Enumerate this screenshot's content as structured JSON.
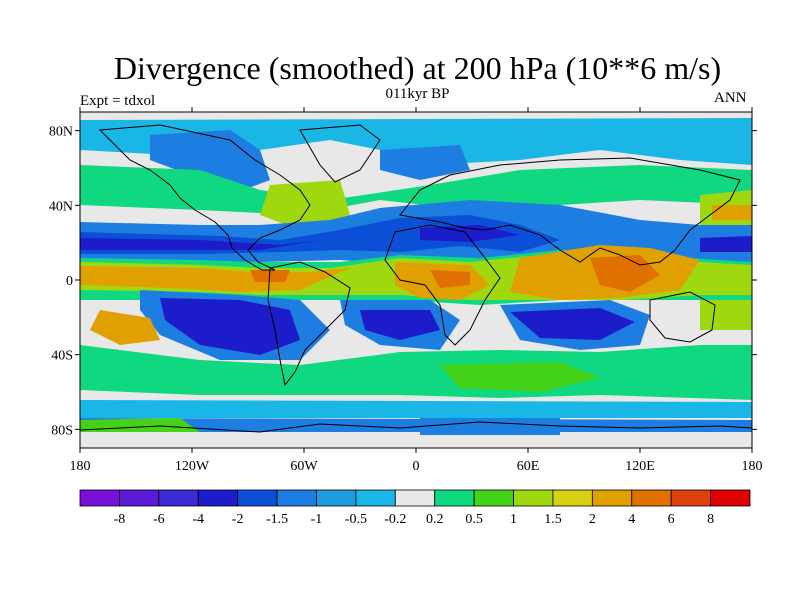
{
  "title": "Divergence (smoothed) at 200 hPa (10**6 m/s)",
  "subtitle": "011kyr BP",
  "left_label": "Expt = tdxol",
  "right_label": "ANN",
  "map": {
    "projection": "cylindrical equidistant",
    "lon_range": [
      -180,
      180
    ],
    "lat_range": [
      -90,
      90
    ],
    "land_color": "#e8e8e8",
    "lat_ticks": [
      {
        "value": 80,
        "label": "80N"
      },
      {
        "value": 40,
        "label": "40N"
      },
      {
        "value": 0,
        "label": "0"
      },
      {
        "value": -40,
        "label": "40S"
      },
      {
        "value": -80,
        "label": "80S"
      }
    ],
    "lon_ticks": [
      {
        "value": -180,
        "label": "180"
      },
      {
        "value": -120,
        "label": "120W"
      },
      {
        "value": -60,
        "label": "60W"
      },
      {
        "value": 0,
        "label": "0"
      },
      {
        "value": 60,
        "label": "60E"
      },
      {
        "value": 120,
        "label": "120E"
      },
      {
        "value": 180,
        "label": "180"
      }
    ]
  },
  "colorbar": {
    "colors": [
      "#7a10d8",
      "#5b1ad6",
      "#3d2ad4",
      "#1c1ccb",
      "#0a4fd6",
      "#1e7de0",
      "#1f9ce0",
      "#1ab6e6",
      "#e8e8e8",
      "#10d880",
      "#44d218",
      "#a0d810",
      "#d8d010",
      "#e0a000",
      "#e07000",
      "#e04010",
      "#e00000"
    ],
    "labels": [
      "-8",
      "-6",
      "-4",
      "-2",
      "-1.5",
      "-1",
      "-0.5",
      "-0.2",
      "0.2",
      "0.5",
      "1",
      "1.5",
      "2",
      "4",
      "6",
      "8"
    ]
  }
}
